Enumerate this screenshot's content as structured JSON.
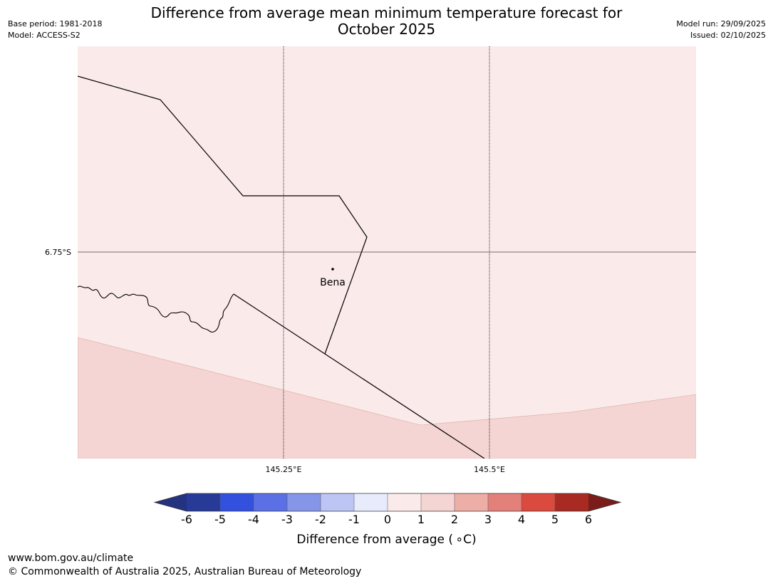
{
  "header": {
    "title_line1": "Difference from average mean minimum temperature forecast for",
    "title_line2": "October 2025",
    "base_period": "Base period: 1981-2018",
    "model": "Model: ACCESS-S2",
    "model_run": "Model run: 29/09/2025",
    "issued": "Issued: 02/10/2025"
  },
  "map": {
    "lat_labels": [
      {
        "value": -6.75,
        "label": "6.75°S"
      }
    ],
    "lon_labels": [
      {
        "value": 145.25,
        "label": "145.25°E"
      },
      {
        "value": 145.5,
        "label": "145.5°E"
      }
    ],
    "places": [
      {
        "name": "Bena",
        "icon": "town-dot-icon"
      }
    ],
    "bands": [
      {
        "range": "0 to 1",
        "color": "#fbeaea"
      },
      {
        "range": "1 to 2",
        "color": "#f4d5d3"
      }
    ],
    "line_color": "#000000"
  },
  "colorbar": {
    "ticks": [
      "-6",
      "-5",
      "-4",
      "-3",
      "-2",
      "-1",
      "0",
      "1",
      "2",
      "3",
      "4",
      "5",
      "6"
    ],
    "colors": [
      "#273a98",
      "#3351de",
      "#5a70e4",
      "#8596e9",
      "#bcc5f3",
      "#e8ebfb",
      "#fbeaea",
      "#f4d5d3",
      "#eeaea8",
      "#e4807a",
      "#da4a3f",
      "#a92a23"
    ],
    "under_color": "#233380",
    "over_color": "#7a1c19",
    "label": "Difference from average ( ∘C)"
  },
  "footer": {
    "url": "www.bom.gov.au/climate",
    "copyright": "© Commonwealth of Australia 2025, Australian Bureau of Meteorology"
  }
}
